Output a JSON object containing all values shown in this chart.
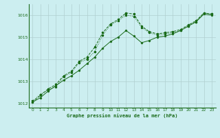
{
  "title": "Graphe pression niveau de la mer (hPa)",
  "background_color": "#cceef0",
  "grid_color": "#b0cfd0",
  "line_color": "#1a6b1a",
  "axis_color": "#1a6b1a",
  "xlim": [
    -0.5,
    23.5
  ],
  "ylim": [
    1011.8,
    1016.5
  ],
  "yticks": [
    1012,
    1013,
    1014,
    1015,
    1016
  ],
  "xticks": [
    0,
    1,
    2,
    3,
    4,
    5,
    6,
    7,
    8,
    9,
    10,
    11,
    12,
    13,
    14,
    15,
    16,
    17,
    18,
    19,
    20,
    21,
    22,
    23
  ],
  "series1_x": [
    0,
    1,
    2,
    3,
    4,
    5,
    6,
    7,
    8,
    9,
    10,
    11,
    12,
    13,
    14,
    15,
    16,
    17,
    18,
    19,
    20,
    21,
    22,
    23
  ],
  "series1_y": [
    1012.1,
    1012.4,
    1012.6,
    1012.75,
    1013.2,
    1013.4,
    1013.85,
    1014.0,
    1014.35,
    1015.1,
    1015.55,
    1015.75,
    1016.0,
    1015.95,
    1015.45,
    1015.2,
    1015.1,
    1015.15,
    1015.2,
    1015.3,
    1015.5,
    1015.7,
    1016.1,
    1016.05
  ],
  "series2_x": [
    0,
    1,
    2,
    3,
    4,
    5,
    6,
    7,
    8,
    9,
    10,
    11,
    12,
    13,
    14,
    15,
    16,
    17,
    18,
    19,
    20,
    21,
    22,
    23
  ],
  "series2_y": [
    1012.05,
    1012.25,
    1012.55,
    1012.8,
    1013.05,
    1013.25,
    1013.5,
    1013.8,
    1014.1,
    1014.5,
    1014.8,
    1015.0,
    1015.3,
    1015.05,
    1014.75,
    1014.85,
    1015.0,
    1015.05,
    1015.15,
    1015.3,
    1015.5,
    1015.7,
    1016.05,
    1016.0
  ],
  "series3_x": [
    0,
    1,
    2,
    3,
    4,
    5,
    6,
    7,
    8,
    9,
    10,
    11,
    12,
    13,
    14,
    15,
    16,
    17,
    18,
    19,
    20,
    21,
    22,
    23
  ],
  "series3_y": [
    1012.05,
    1012.35,
    1012.65,
    1012.85,
    1013.25,
    1013.45,
    1013.9,
    1014.1,
    1014.55,
    1015.2,
    1015.6,
    1015.8,
    1016.1,
    1016.05,
    1015.5,
    1015.25,
    1015.15,
    1015.2,
    1015.25,
    1015.35,
    1015.55,
    1015.75,
    1016.1,
    1016.05
  ]
}
